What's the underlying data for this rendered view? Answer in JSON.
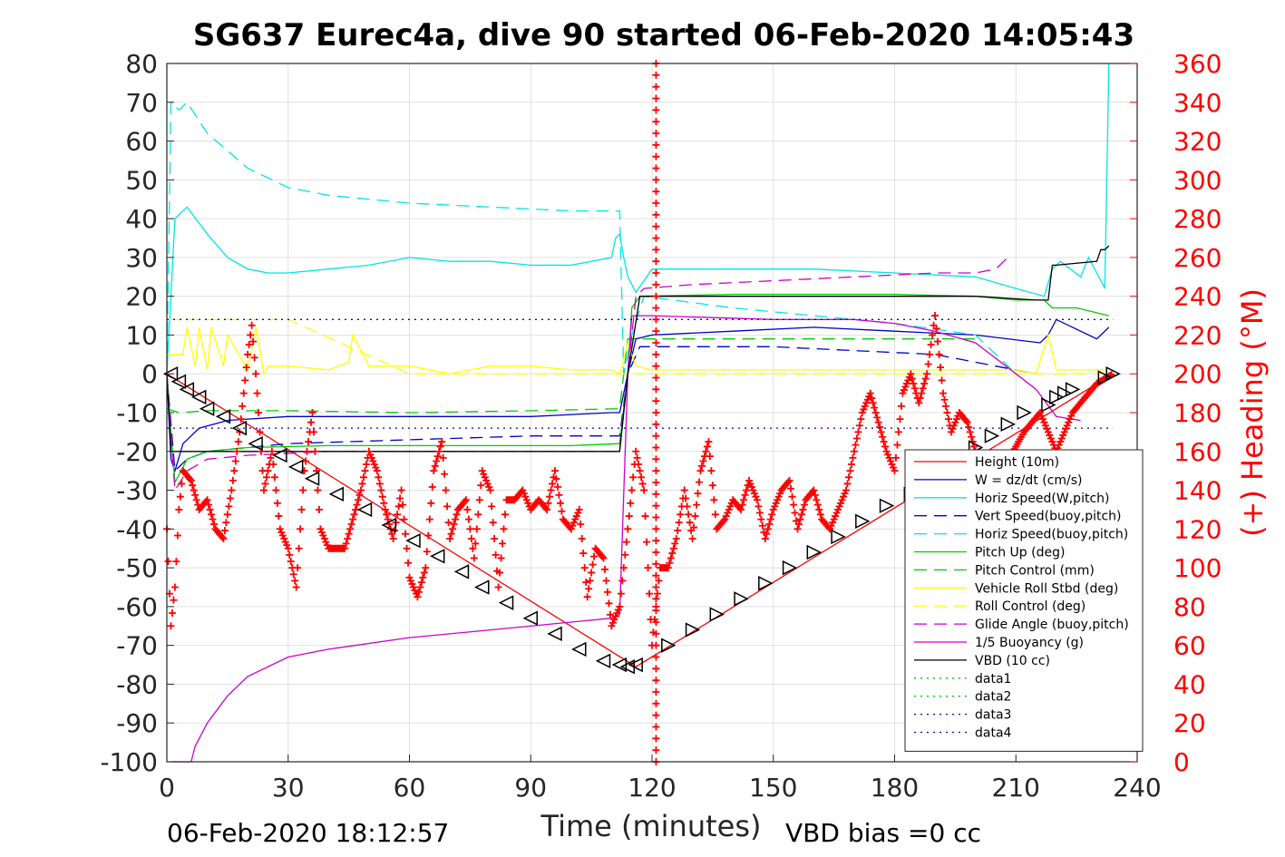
{
  "chart_data": {
    "type": "line",
    "title": "SG637 Eurec4a, dive 90 started 06-Feb-2020 14:05:43",
    "xlabel": "Time (minutes)",
    "ylabel_right": "(+) Heading (°M)",
    "xlim": [
      0,
      240
    ],
    "ylim": [
      -100,
      80
    ],
    "ylim_right": [
      0,
      360
    ],
    "x_ticks": [
      "0",
      "30",
      "60",
      "90",
      "120",
      "150",
      "180",
      "210",
      "240"
    ],
    "y_ticks": [
      "80",
      "70",
      "60",
      "50",
      "40",
      "30",
      "20",
      "10",
      "0",
      "-10",
      "-20",
      "-30",
      "-40",
      "-50",
      "-60",
      "-70",
      "-80",
      "-90",
      "-100"
    ],
    "y_ticks_right": [
      "360",
      "340",
      "320",
      "300",
      "280",
      "260",
      "240",
      "220",
      "200",
      "180",
      "160",
      "140",
      "120",
      "100",
      "80",
      "60",
      "40",
      "20",
      "0"
    ],
    "grid": true,
    "legend_position": "lower-right",
    "footer_left": "06-Feb-2020 18:12:57",
    "footer_right": "VBD bias =0 cc",
    "colors": {
      "red": "#ff0000",
      "blue": "#0000cc",
      "cyan": "#00e5e5",
      "green": "#00cc00",
      "yellow": "#ffff00",
      "magenta": "#cc00cc",
      "black": "#000000"
    },
    "series": [
      {
        "name": "Height (10m)",
        "color": "#ff0000",
        "style": "solid",
        "x": [
          0,
          116,
          234
        ],
        "y": [
          0,
          -75.5,
          0
        ]
      },
      {
        "name": "W = dz/dt (cm/s)",
        "color": "#0000cc",
        "style": "solid",
        "x": [
          0,
          1,
          2,
          4,
          8,
          15,
          30,
          50,
          70,
          90,
          110,
          112,
          114,
          116,
          120,
          140,
          160,
          180,
          200,
          216,
          218,
          220,
          230,
          233
        ],
        "y": [
          0,
          -22,
          -25,
          -18,
          -14,
          -12,
          -11,
          -11,
          -11,
          -11,
          -10,
          -10,
          0,
          9,
          10,
          11,
          12,
          11,
          10,
          8,
          10,
          14,
          9,
          12
        ]
      },
      {
        "name": "Horiz Speed(W,pitch)",
        "color": "#00e5e5",
        "style": "solid",
        "x": [
          0,
          2,
          5,
          10,
          15,
          20,
          25,
          30,
          40,
          50,
          60,
          70,
          80,
          90,
          100,
          110,
          111,
          112,
          113,
          114,
          116,
          120,
          140,
          160,
          180,
          200,
          210,
          217,
          219,
          221,
          226,
          228,
          230,
          232,
          233
        ],
        "y": [
          0,
          40,
          43,
          36,
          30,
          27,
          26,
          26,
          27,
          28,
          30,
          29,
          29,
          28,
          28,
          30,
          35,
          36,
          30,
          25,
          21,
          27,
          27,
          27,
          26,
          25,
          22,
          20,
          27,
          29,
          25,
          30,
          26,
          22,
          80
        ]
      },
      {
        "name": "Vert Speed(buoy,pitch)",
        "color": "#0000cc",
        "style": "dashed",
        "x": [
          0,
          2,
          5,
          10,
          30,
          60,
          90,
          112,
          114,
          117,
          130,
          150,
          170,
          190,
          205,
          215
        ],
        "y": [
          0,
          -25,
          -22,
          -20,
          -18,
          -17,
          -16,
          -16,
          0,
          7,
          7,
          7,
          6,
          5,
          2,
          0
        ]
      },
      {
        "name": "Horiz Speed(buoy,pitch)",
        "color": "#00e5e5",
        "style": "dashed",
        "x": [
          0,
          1,
          3,
          5,
          10,
          20,
          30,
          40,
          60,
          80,
          100,
          112,
          113,
          115,
          118,
          140,
          160,
          180,
          200,
          210
        ],
        "y": [
          0,
          70,
          68,
          70,
          62,
          53,
          48,
          46,
          44,
          43,
          42,
          42,
          0,
          10,
          20,
          17,
          15,
          13,
          10,
          0
        ]
      },
      {
        "name": "Pitch Up (deg)",
        "color": "#00cc00",
        "style": "solid",
        "x": [
          0,
          1,
          2,
          5,
          10,
          20,
          40,
          60,
          80,
          100,
          112,
          114,
          115,
          117,
          140,
          160,
          180,
          200,
          210,
          217,
          219,
          225,
          233
        ],
        "y": [
          0,
          -15,
          -28,
          -22,
          -20,
          -19,
          -18.5,
          -18.5,
          -18.5,
          -18.5,
          -18,
          0,
          17,
          20,
          20.5,
          20.5,
          20.5,
          20,
          19,
          19,
          17,
          17,
          15
        ]
      },
      {
        "name": "Pitch Control (mm)",
        "color": "#00cc00",
        "style": "dashed",
        "x": [
          0,
          3,
          10,
          30,
          60,
          90,
          112,
          114,
          118,
          140,
          170,
          200
        ],
        "y": [
          -9,
          -10,
          -9.5,
          -9.5,
          -10,
          -9.5,
          -9,
          9,
          9,
          9,
          9,
          9
        ]
      },
      {
        "name": "Vehicle Roll Stbd (deg)",
        "color": "#ffff00",
        "style": "solid",
        "x": [
          0,
          4,
          5,
          7,
          8,
          10,
          11,
          14,
          15,
          20,
          22,
          24,
          25,
          30,
          40,
          45,
          46,
          50,
          60,
          70,
          80,
          90,
          100,
          110,
          112,
          114,
          116,
          120,
          130,
          150,
          170,
          190,
          200,
          210,
          215,
          218,
          220,
          225,
          232
        ],
        "y": [
          5,
          5,
          12,
          2,
          12,
          1,
          12,
          2,
          10,
          1,
          12,
          0,
          2,
          2,
          1,
          3,
          10,
          2,
          2,
          0,
          2,
          2,
          1,
          1,
          0,
          8,
          2,
          1,
          1,
          1,
          1,
          1,
          1,
          1,
          0,
          10,
          1,
          1,
          1
        ]
      },
      {
        "name": "Roll Control (deg)",
        "color": "#ffff00",
        "style": "dashed",
        "x": [
          0,
          10,
          20,
          30,
          60,
          90,
          112,
          114,
          140,
          170,
          200,
          230
        ],
        "y": [
          14,
          14,
          14,
          14,
          0,
          0,
          0,
          0,
          0,
          0,
          0,
          0
        ]
      },
      {
        "name": "Glide Angle (buoy,pitch)",
        "color": "#cc00cc",
        "style": "dashed",
        "x": [
          0,
          2,
          5,
          10,
          20,
          40,
          60,
          80,
          100,
          112,
          114,
          116,
          118,
          130,
          150,
          170,
          190,
          200,
          205,
          208
        ],
        "y": [
          0,
          -30,
          -25,
          -22,
          -21,
          -20,
          -20,
          -20,
          -20,
          -20,
          0,
          20,
          22,
          23,
          24,
          25,
          26,
          26,
          27,
          30
        ]
      },
      {
        "name": "1/5 Buoyancy (g)",
        "color": "#cc00cc",
        "style": "solid",
        "x": [
          1,
          2,
          6,
          7,
          10,
          15,
          20,
          30,
          40,
          60,
          80,
          100,
          110,
          112,
          114,
          115,
          120,
          150,
          170,
          180,
          190,
          200,
          210,
          215,
          220,
          226
        ],
        "y": [
          -100,
          -100,
          -100,
          -96,
          -90,
          -83,
          -78,
          -73,
          -71,
          -68,
          -66,
          -64,
          -63,
          -62,
          0,
          15,
          15,
          14,
          14,
          13,
          11,
          8,
          0,
          -4,
          -11,
          -12
        ]
      },
      {
        "name": "VBD (10 cc)",
        "color": "#000000",
        "style": "solid",
        "x": [
          0,
          1,
          112,
          114,
          117,
          200,
          215,
          216,
          218,
          219,
          220,
          230,
          231,
          232,
          233
        ],
        "y": [
          0,
          -20,
          -20,
          0,
          20,
          20,
          19,
          19,
          19,
          28,
          28,
          29,
          32,
          32,
          33
        ]
      },
      {
        "name": "data1",
        "color": "#00cc00",
        "style": "dotted",
        "x": [],
        "y": []
      },
      {
        "name": "data2",
        "color": "#00cc00",
        "style": "dotted",
        "x": [],
        "y": []
      },
      {
        "name": "data3",
        "color": "#0000cc",
        "style": "dotted",
        "x": [
          0,
          234
        ],
        "y": [
          14,
          14
        ]
      },
      {
        "name": "data4",
        "color": "#0000cc",
        "style": "dotted",
        "x": [
          0,
          234
        ],
        "y": [
          -14,
          -14
        ]
      }
    ],
    "heading": {
      "name": "(+) Heading (°M)",
      "color": "#ff0000",
      "marker": "+",
      "x": [
        0,
        1,
        2,
        3,
        4,
        6,
        8,
        10,
        12,
        14,
        16,
        18,
        20,
        21,
        22,
        24,
        26,
        28,
        30,
        32,
        34,
        36,
        38,
        40,
        44,
        48,
        50,
        52,
        54,
        56,
        58,
        60,
        62,
        64,
        66,
        68,
        70,
        72,
        74,
        76,
        78,
        80,
        82,
        84,
        86,
        88,
        90,
        92,
        94,
        96,
        98,
        100,
        102,
        104,
        106,
        108,
        110,
        112,
        114,
        116,
        118,
        120,
        122,
        124,
        126,
        128,
        130,
        132,
        134,
        136,
        138,
        140,
        142,
        144,
        146,
        148,
        150,
        152,
        154,
        156,
        158,
        160,
        162,
        164,
        166,
        168,
        170,
        172,
        174,
        176,
        178,
        180,
        182,
        184,
        186,
        188,
        190,
        192,
        194,
        196,
        198,
        200,
        204,
        208,
        212,
        216,
        220,
        224,
        230,
        234
      ],
      "y": [
        120,
        70,
        90,
        130,
        150,
        145,
        130,
        135,
        120,
        115,
        140,
        170,
        210,
        225,
        200,
        140,
        160,
        120,
        110,
        90,
        150,
        180,
        120,
        110,
        110,
        140,
        160,
        150,
        130,
        115,
        140,
        95,
        85,
        100,
        150,
        165,
        115,
        130,
        135,
        105,
        150,
        140,
        90,
        135,
        135,
        140,
        130,
        135,
        130,
        150,
        125,
        120,
        130,
        85,
        110,
        105,
        70,
        80,
        120,
        160,
        140,
        60,
        100,
        100,
        115,
        140,
        115,
        150,
        165,
        120,
        125,
        135,
        130,
        145,
        135,
        115,
        130,
        140,
        145,
        120,
        135,
        140,
        125,
        120,
        130,
        140,
        160,
        180,
        190,
        175,
        160,
        150,
        190,
        200,
        185,
        200,
        230,
        190,
        170,
        180,
        175,
        160,
        150,
        155,
        170,
        180,
        160,
        180,
        195,
        200
      ]
    },
    "heading_spike": {
      "x": 121,
      "y_from": 0,
      "y_to": 360
    },
    "triangles": {
      "x": [
        1,
        3,
        5,
        8,
        10,
        14,
        18,
        22,
        28,
        32,
        36,
        42,
        49,
        55,
        61,
        67,
        73,
        78,
        84,
        90,
        96,
        102,
        108,
        112,
        114,
        116,
        124,
        130,
        136,
        142,
        148,
        154,
        160,
        166,
        172,
        178,
        184,
        188,
        192,
        196,
        200,
        204,
        208,
        212,
        218,
        220,
        222,
        224,
        232,
        234
      ],
      "y": [
        0,
        -2,
        -4,
        -6,
        -9,
        -11,
        -14,
        -18,
        -21,
        -24,
        -27,
        -31,
        -35,
        -39,
        -43,
        -47,
        -51,
        -55,
        -59,
        -63,
        -67,
        -71,
        -74,
        -75,
        -75.5,
        -75,
        -70,
        -66,
        -62,
        -58,
        -54,
        -50,
        -46,
        -42,
        -38,
        -34,
        -31,
        -28,
        -25,
        -22,
        -19,
        -16,
        -13,
        -10,
        -8,
        -6,
        -5,
        -4,
        -1,
        0
      ]
    }
  }
}
